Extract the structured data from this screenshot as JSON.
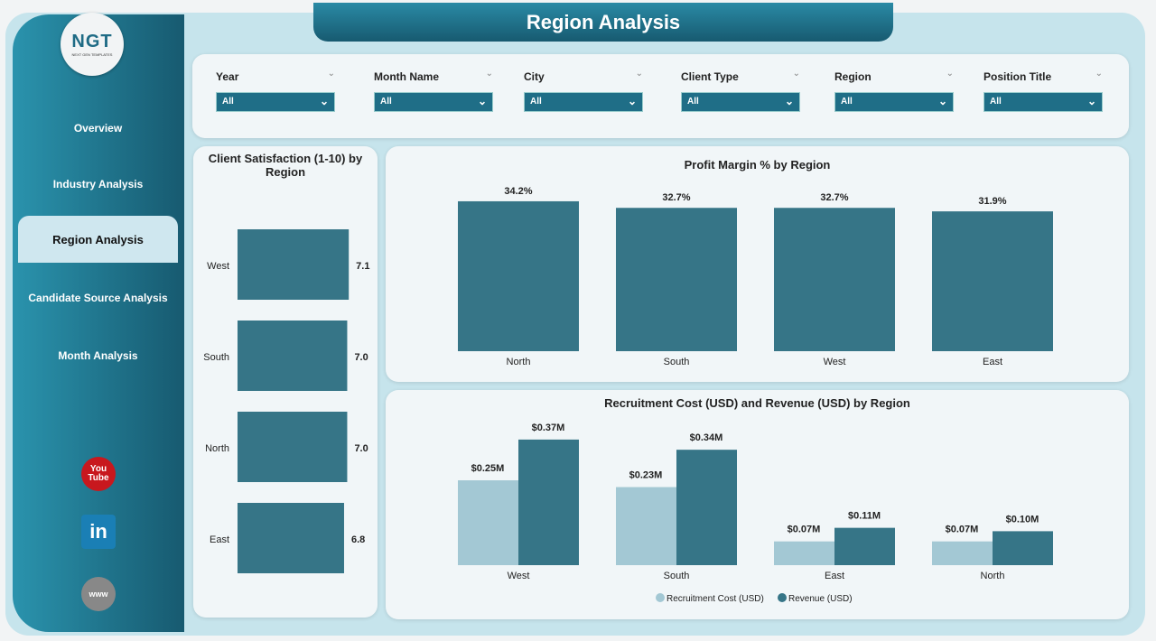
{
  "header": {
    "title": "Region Analysis"
  },
  "logo": {
    "text": "NGT",
    "tagline": "NEXT GEN TEMPLATES"
  },
  "sidebar": {
    "items": [
      {
        "label": "Overview"
      },
      {
        "label": "Industry Analysis"
      },
      {
        "label": "Region Analysis",
        "active": true
      },
      {
        "label": "Candidate Source Analysis"
      },
      {
        "label": "Month Analysis"
      }
    ],
    "social": [
      "youtube-icon",
      "linkedin-icon",
      "website-icon"
    ]
  },
  "filters": [
    {
      "label": "Year",
      "value": "All"
    },
    {
      "label": "Month Name",
      "value": "All"
    },
    {
      "label": "City",
      "value": "All"
    },
    {
      "label": "Client Type",
      "value": "All"
    },
    {
      "label": "Region",
      "value": "All"
    },
    {
      "label": "Position Title",
      "value": "All"
    }
  ],
  "colors": {
    "accent": "#1f6e87",
    "bar_dark": "#367587",
    "bar_light": "#a3c8d4"
  },
  "chart_data": [
    {
      "type": "bar",
      "orientation": "horizontal",
      "title": "Client Satisfaction (1-10) by Region",
      "categories": [
        "West",
        "South",
        "North",
        "East"
      ],
      "values": [
        7.1,
        7.0,
        7.0,
        6.8
      ],
      "labels": [
        "7.1",
        "7.0",
        "7.0",
        "6.8"
      ]
    },
    {
      "type": "bar",
      "title": "Profit Margin % by Region",
      "categories": [
        "North",
        "South",
        "West",
        "East"
      ],
      "values": [
        34.2,
        32.7,
        32.7,
        31.9
      ],
      "labels": [
        "34.2%",
        "32.7%",
        "32.7%",
        "31.9%"
      ]
    },
    {
      "type": "bar",
      "title": "Recruitment Cost (USD) and Revenue (USD) by Region",
      "categories": [
        "West",
        "South",
        "East",
        "North"
      ],
      "legend": "bottom",
      "series": [
        {
          "name": "Recruitment Cost (USD)",
          "values": [
            0.25,
            0.23,
            0.07,
            0.07
          ],
          "labels": [
            "$0.25M",
            "$0.23M",
            "$0.07M",
            "$0.07M"
          ]
        },
        {
          "name": "Revenue (USD)",
          "values": [
            0.37,
            0.34,
            0.11,
            0.1
          ],
          "labels": [
            "$0.37M",
            "$0.34M",
            "$0.11M",
            "$0.10M"
          ]
        }
      ]
    }
  ]
}
